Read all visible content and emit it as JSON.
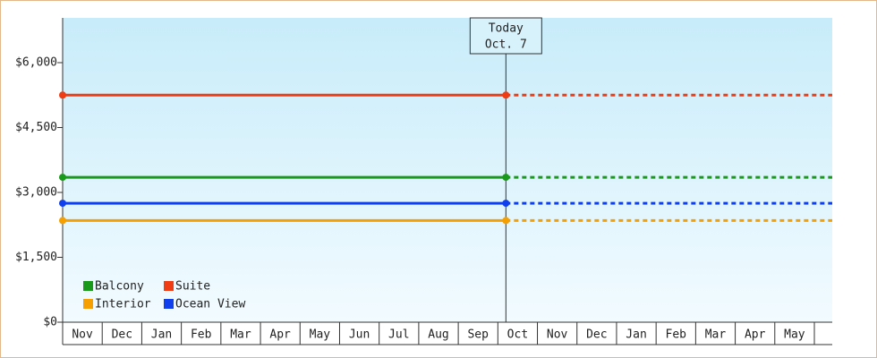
{
  "chart_data": {
    "type": "line",
    "annotation": [
      "Today",
      "Oct. 7"
    ],
    "categories": [
      "Nov",
      "Dec",
      "Jan",
      "Feb",
      "Mar",
      "Apr",
      "May",
      "Jun",
      "Jul",
      "Aug",
      "Sep",
      "Oct",
      "Nov",
      "Dec",
      "Jan",
      "Feb",
      "Mar",
      "Apr",
      "May"
    ],
    "series": [
      {
        "name": "Balcony",
        "color": "#1a9a1a",
        "value": 3350
      },
      {
        "name": "Suite",
        "color": "#f03c14",
        "value": 5250
      },
      {
        "name": "Interior",
        "color": "#f5a000",
        "value": 2350
      },
      {
        "name": "Ocean View",
        "color": "#1040ee",
        "value": 2750
      }
    ],
    "ylim": [
      0,
      7000
    ],
    "yticks": [
      {
        "value": 0,
        "label": "$0"
      },
      {
        "value": 1500,
        "label": "$1,500"
      },
      {
        "value": 3000,
        "label": "$3,000"
      },
      {
        "value": 4500,
        "label": "$4,500"
      },
      {
        "value": 6000,
        "label": "$6,000"
      }
    ]
  }
}
